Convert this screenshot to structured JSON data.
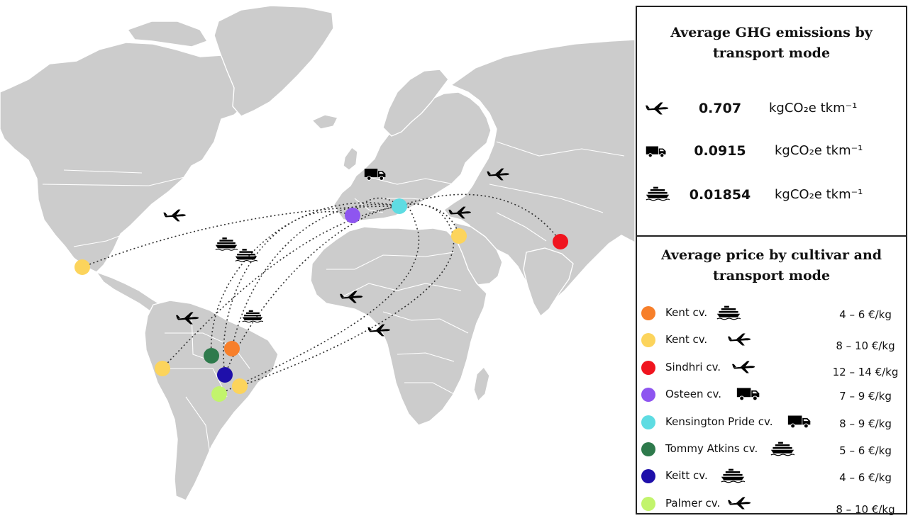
{
  "ghg_panel": {
    "title_line1": "Average GHG emissions by",
    "title_line2": "transport mode",
    "rows": [
      {
        "icon": "airplane-icon",
        "value": "0.707",
        "unit": "kgCO₂e tkm⁻¹"
      },
      {
        "icon": "truck-icon",
        "value": "0.0915",
        "unit": "kgCO₂e tkm⁻¹"
      },
      {
        "icon": "ship-icon",
        "value": "0.01854",
        "unit": "kgCO₂e tkm⁻¹"
      }
    ]
  },
  "price_panel": {
    "title_line1": "Average price by cultivar and",
    "title_line2": "transport mode",
    "rows": [
      {
        "color": "#F77F2A",
        "name": "Kent cv.",
        "mode": "ship-icon",
        "price": "4 – 6 €/kg"
      },
      {
        "color": "#FCD45C",
        "name": "Kent cv.",
        "mode": "airplane-icon",
        "price": "8 – 10 €/kg"
      },
      {
        "color": "#F0141E",
        "name": "Sindhri cv.",
        "mode": "airplane-icon",
        "price": "12 – 14 €/kg"
      },
      {
        "color": "#8E55F0",
        "name": "Osteen cv.",
        "mode": "truck-icon",
        "price": "7 – 9 €/kg"
      },
      {
        "color": "#5EDCE2",
        "name": "Kensington Pride cv.",
        "mode": "truck-icon",
        "price": "8 – 9 €/kg"
      },
      {
        "color": "#2E7A4C",
        "name": "Tommy Atkins cv.",
        "mode": "ship-icon",
        "price": "5 – 6 €/kg"
      },
      {
        "color": "#1E0FAA",
        "name": "Keitt cv.",
        "mode": "ship-icon",
        "price": "4 – 6 €/kg"
      },
      {
        "color": "#C2F46C",
        "name": "Palmer cv.",
        "mode": "airplane-icon",
        "price": "8 – 10 €/kg"
      }
    ]
  },
  "colors": {
    "land": "#CCCCCC",
    "border": "#FFFFFF",
    "route": "#333333"
  }
}
